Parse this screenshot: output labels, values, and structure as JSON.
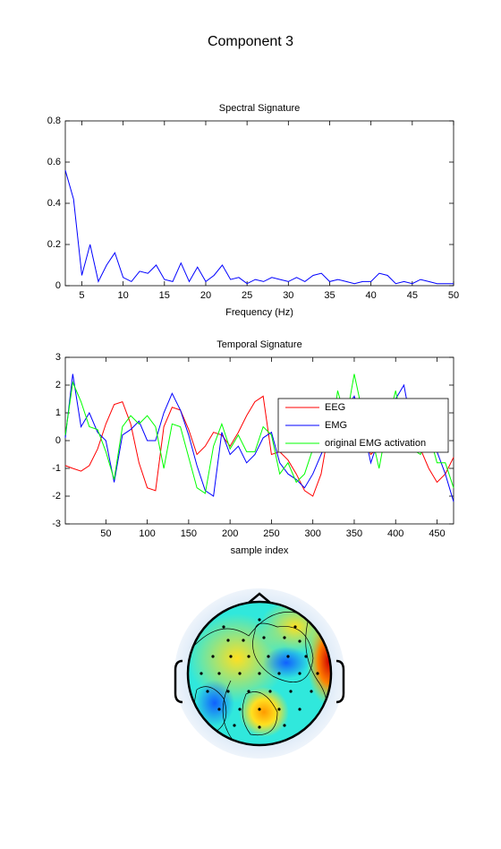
{
  "title": "Component 3",
  "chart_data": [
    {
      "type": "line",
      "title": "Spectral Signature",
      "x_label": "Frequency (Hz)",
      "x": [
        3,
        4,
        5,
        6,
        7,
        8,
        9,
        10,
        11,
        12,
        13,
        14,
        15,
        16,
        17,
        18,
        19,
        20,
        21,
        22,
        23,
        24,
        25,
        26,
        27,
        28,
        29,
        30,
        31,
        32,
        33,
        34,
        35,
        36,
        37,
        38,
        39,
        40,
        41,
        42,
        43,
        44,
        45,
        46,
        47,
        48,
        49,
        50
      ],
      "series": [
        {
          "name": "Spectral Signature",
          "color": "#0000ff",
          "values": [
            0.56,
            0.42,
            0.05,
            0.2,
            0.02,
            0.1,
            0.16,
            0.04,
            0.02,
            0.07,
            0.06,
            0.1,
            0.03,
            0.02,
            0.11,
            0.02,
            0.09,
            0.02,
            0.05,
            0.1,
            0.03,
            0.04,
            0.01,
            0.03,
            0.02,
            0.04,
            0.03,
            0.02,
            0.04,
            0.02,
            0.05,
            0.06,
            0.02,
            0.03,
            0.02,
            0.01,
            0.02,
            0.02,
            0.06,
            0.05,
            0.01,
            0.02,
            0.01,
            0.03,
            0.02,
            0.01,
            0.01,
            0.01
          ]
        }
      ],
      "xlim": [
        3,
        50
      ],
      "xticks": [
        5,
        10,
        15,
        20,
        25,
        30,
        35,
        40,
        45,
        50
      ],
      "ylim": [
        0,
        0.8
      ],
      "yticks": [
        0,
        0.2,
        0.4,
        0.6,
        0.8
      ],
      "legend": null
    },
    {
      "type": "line",
      "title": "Temporal Signature",
      "x_label": "sample index",
      "x": [
        1,
        10,
        20,
        30,
        40,
        50,
        60,
        70,
        80,
        90,
        100,
        110,
        120,
        130,
        140,
        150,
        160,
        170,
        180,
        190,
        200,
        210,
        220,
        230,
        240,
        250,
        260,
        270,
        280,
        290,
        300,
        310,
        320,
        330,
        340,
        350,
        360,
        370,
        380,
        390,
        400,
        410,
        420,
        430,
        440,
        450,
        460,
        470
      ],
      "series": [
        {
          "name": "EEG",
          "color": "#ff0000",
          "values": [
            -0.9,
            -1,
            -1.1,
            -0.9,
            -0.3,
            0.6,
            1.3,
            1.4,
            0.6,
            -0.8,
            -1.7,
            -1.8,
            0.5,
            1.2,
            1.1,
            0.4,
            -0.5,
            -0.2,
            0.3,
            0.2,
            -0.2,
            0.3,
            0.9,
            1.4,
            1.6,
            -0.5,
            -0.4,
            -0.7,
            -1.2,
            -1.8,
            -2,
            -1.2,
            0.5,
            1.4,
            1.2,
            0.5,
            0.2,
            -0.5,
            -0.2,
            0.4,
            1.2,
            1.3,
            0.8,
            -0.3,
            -1,
            -1.5,
            -1.2,
            -0.6
          ]
        },
        {
          "name": "EMG",
          "color": "#0000ff",
          "values": [
            0.1,
            2.4,
            0.5,
            1,
            0.3,
            0,
            -1.5,
            0.2,
            0.4,
            0.7,
            0,
            0,
            1,
            1.7,
            1.1,
            0.2,
            -0.9,
            -1.8,
            -2,
            0.3,
            -0.5,
            -0.2,
            -0.8,
            -0.5,
            0.1,
            0.3,
            -0.8,
            -1.2,
            -1.4,
            -1.7,
            -1.2,
            -0.5,
            0.2,
            0.4,
            1.1,
            1.6,
            0.6,
            -0.8,
            0.1,
            0.3,
            1.5,
            2,
            0.4,
            -0.2,
            0.5,
            -0.4,
            -1.2,
            -2.2
          ]
        },
        {
          "name": "original EMG activation",
          "color": "#00ff00",
          "values": [
            0.2,
            2.1,
            1.4,
            0.5,
            0.4,
            -0.4,
            -1.4,
            0.5,
            0.9,
            0.6,
            0.9,
            0.5,
            -1,
            0.6,
            0.5,
            -0.6,
            -1.7,
            -1.9,
            -0.2,
            0.6,
            -0.3,
            0.2,
            -0.4,
            -0.4,
            0.5,
            0.2,
            -1.2,
            -0.8,
            -1.5,
            -1.2,
            -0.3,
            0.2,
            -0.3,
            1.8,
            0.7,
            2.4,
            1,
            0.3,
            -1,
            0.6,
            1.8,
            0.4,
            -0.3,
            -0.5,
            0.3,
            -0.8,
            -0.8,
            -1.7
          ]
        }
      ],
      "xlim": [
        1,
        470
      ],
      "xticks": [
        50,
        100,
        150,
        200,
        250,
        300,
        350,
        400,
        450
      ],
      "ylim": [
        -3,
        3
      ],
      "yticks": [
        -3,
        -2,
        -1,
        0,
        1,
        2,
        3
      ],
      "legend": "upper right"
    }
  ]
}
